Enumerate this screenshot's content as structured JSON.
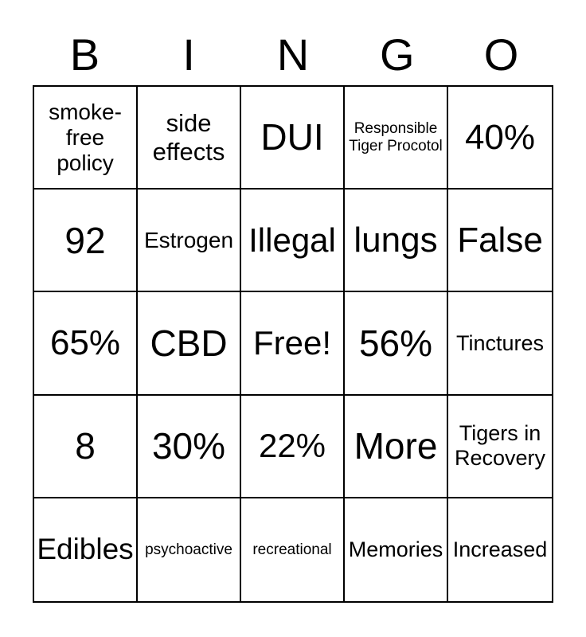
{
  "header": {
    "letters": [
      "B",
      "I",
      "N",
      "G",
      "O"
    ]
  },
  "grid": {
    "rows": [
      [
        "smoke-free policy",
        "side effects",
        "DUI",
        "Responsible Tiger Procotol",
        "40%"
      ],
      [
        "92",
        "Estrogen",
        "Illegal",
        "lungs",
        "False"
      ],
      [
        "65%",
        "CBD",
        "Free!",
        "56%",
        "Tinctures"
      ],
      [
        "8",
        "30%",
        "22%",
        "More",
        "Tigers in Recovery"
      ],
      [
        "Edibles",
        "psychoactive",
        "recreational",
        "Memories",
        "Increased"
      ]
    ]
  },
  "colors": {
    "background": "#ffffff",
    "text": "#000000",
    "border": "#000000"
  }
}
